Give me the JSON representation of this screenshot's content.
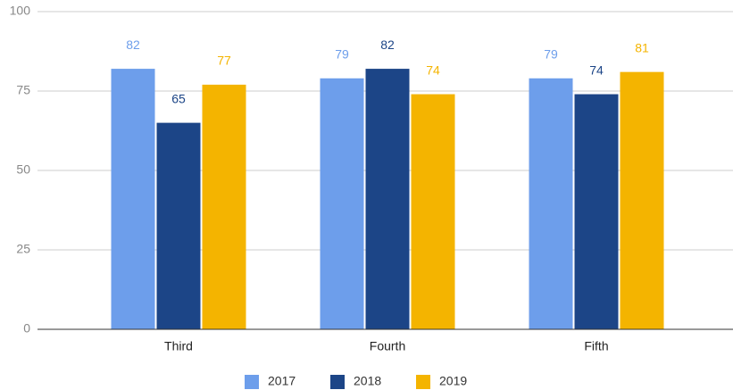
{
  "chart_data": {
    "type": "bar",
    "categories": [
      "Third",
      "Fourth",
      "Fifth"
    ],
    "series": [
      {
        "name": "2017",
        "color": "#6d9eeb",
        "values": [
          82,
          79,
          79
        ]
      },
      {
        "name": "2018",
        "color": "#1c4587",
        "values": [
          65,
          82,
          74
        ]
      },
      {
        "name": "2019",
        "color": "#f4b400",
        "values": [
          77,
          74,
          81
        ]
      }
    ],
    "ylim": [
      0,
      100
    ],
    "yticks": [
      0,
      25,
      50,
      75,
      100
    ],
    "grid": true,
    "legend": "bottom"
  }
}
